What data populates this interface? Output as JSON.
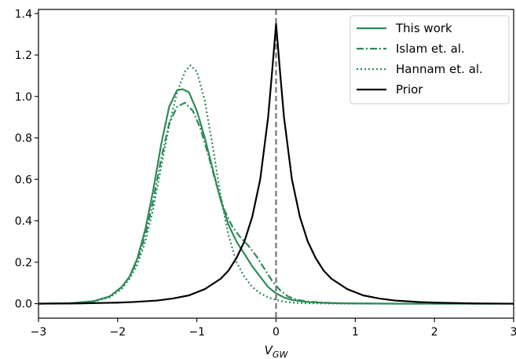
{
  "chart_data": {
    "type": "line",
    "title": "",
    "xlabel": "V",
    "xlabel_sub": "GW",
    "ylabel": "",
    "xlim": [
      -3,
      3
    ],
    "ylim": [
      -0.07,
      1.42
    ],
    "xticks": [
      -3,
      -2,
      -1,
      0,
      1,
      2,
      3
    ],
    "xtick_labels": [
      "−3",
      "−2",
      "−1",
      "0",
      "1",
      "2",
      "3"
    ],
    "yticks": [
      0.0,
      0.2,
      0.4,
      0.6,
      0.8,
      1.0,
      1.2,
      1.4
    ],
    "ytick_labels": [
      "0.0",
      "0.2",
      "0.4",
      "0.6",
      "0.8",
      "1.0",
      "1.2",
      "1.4"
    ],
    "grid": false,
    "legend_position": "top-right",
    "vline": {
      "x": 0,
      "color": "#808080",
      "style": "dashed"
    },
    "series": [
      {
        "name": "This work",
        "color": "#2e8b57",
        "style": "solid",
        "points": [
          [
            -3,
            0
          ],
          [
            -2.6,
            0.002
          ],
          [
            -2.3,
            0.012
          ],
          [
            -2.1,
            0.035
          ],
          [
            -1.95,
            0.08
          ],
          [
            -1.85,
            0.13
          ],
          [
            -1.75,
            0.22
          ],
          [
            -1.65,
            0.36
          ],
          [
            -1.55,
            0.55
          ],
          [
            -1.45,
            0.77
          ],
          [
            -1.35,
            0.95
          ],
          [
            -1.25,
            1.03
          ],
          [
            -1.18,
            1.035
          ],
          [
            -1.1,
            1.02
          ],
          [
            -1.0,
            0.93
          ],
          [
            -0.9,
            0.8
          ],
          [
            -0.8,
            0.65
          ],
          [
            -0.7,
            0.5
          ],
          [
            -0.6,
            0.38
          ],
          [
            -0.5,
            0.3
          ],
          [
            -0.4,
            0.24
          ],
          [
            -0.3,
            0.18
          ],
          [
            -0.2,
            0.13
          ],
          [
            -0.1,
            0.08
          ],
          [
            0,
            0.05
          ],
          [
            0.1,
            0.03
          ],
          [
            0.2,
            0.018
          ],
          [
            0.4,
            0.008
          ],
          [
            0.6,
            0.004
          ],
          [
            0.8,
            0.002
          ],
          [
            1.0,
            0.001
          ],
          [
            1.5,
            0
          ],
          [
            3,
            0
          ]
        ]
      },
      {
        "name": "Islam et. al.",
        "color": "#2e8b57",
        "style": "dashdot",
        "points": [
          [
            -3,
            0
          ],
          [
            -2.6,
            0.002
          ],
          [
            -2.3,
            0.012
          ],
          [
            -2.1,
            0.035
          ],
          [
            -1.95,
            0.08
          ],
          [
            -1.85,
            0.13
          ],
          [
            -1.75,
            0.21
          ],
          [
            -1.65,
            0.33
          ],
          [
            -1.55,
            0.5
          ],
          [
            -1.45,
            0.7
          ],
          [
            -1.35,
            0.87
          ],
          [
            -1.25,
            0.95
          ],
          [
            -1.15,
            0.97
          ],
          [
            -1.05,
            0.93
          ],
          [
            -0.95,
            0.84
          ],
          [
            -0.85,
            0.71
          ],
          [
            -0.75,
            0.57
          ],
          [
            -0.65,
            0.45
          ],
          [
            -0.55,
            0.37
          ],
          [
            -0.45,
            0.32
          ],
          [
            -0.35,
            0.28
          ],
          [
            -0.25,
            0.23
          ],
          [
            -0.15,
            0.17
          ],
          [
            -0.05,
            0.11
          ],
          [
            0.05,
            0.065
          ],
          [
            0.15,
            0.035
          ],
          [
            0.25,
            0.02
          ],
          [
            0.4,
            0.01
          ],
          [
            0.6,
            0.005
          ],
          [
            0.8,
            0.002
          ],
          [
            1.0,
            0.001
          ],
          [
            1.5,
            0
          ],
          [
            3,
            0
          ]
        ]
      },
      {
        "name": "Hannam et. al.",
        "color": "#2e8b57",
        "style": "dotted",
        "points": [
          [
            -3,
            0
          ],
          [
            -2.6,
            0.002
          ],
          [
            -2.3,
            0.01
          ],
          [
            -2.1,
            0.03
          ],
          [
            -1.95,
            0.07
          ],
          [
            -1.85,
            0.12
          ],
          [
            -1.75,
            0.19
          ],
          [
            -1.65,
            0.3
          ],
          [
            -1.55,
            0.46
          ],
          [
            -1.45,
            0.66
          ],
          [
            -1.35,
            0.86
          ],
          [
            -1.25,
            1.02
          ],
          [
            -1.15,
            1.12
          ],
          [
            -1.08,
            1.15
          ],
          [
            -1.0,
            1.12
          ],
          [
            -0.9,
            0.98
          ],
          [
            -0.8,
            0.76
          ],
          [
            -0.7,
            0.52
          ],
          [
            -0.6,
            0.33
          ],
          [
            -0.5,
            0.2
          ],
          [
            -0.4,
            0.13
          ],
          [
            -0.3,
            0.08
          ],
          [
            -0.2,
            0.05
          ],
          [
            -0.1,
            0.03
          ],
          [
            0,
            0.018
          ],
          [
            0.1,
            0.01
          ],
          [
            0.2,
            0.005
          ],
          [
            0.4,
            0.002
          ],
          [
            0.6,
            0.001
          ],
          [
            1.0,
            0
          ],
          [
            3,
            0
          ]
        ]
      },
      {
        "name": "Prior",
        "color": "#000000",
        "style": "solid",
        "points": [
          [
            -3,
            0
          ],
          [
            -2.5,
            0.001
          ],
          [
            -2.0,
            0.005
          ],
          [
            -1.8,
            0.008
          ],
          [
            -1.5,
            0.015
          ],
          [
            -1.3,
            0.025
          ],
          [
            -1.1,
            0.04
          ],
          [
            -0.9,
            0.07
          ],
          [
            -0.7,
            0.12
          ],
          [
            -0.6,
            0.16
          ],
          [
            -0.5,
            0.22
          ],
          [
            -0.4,
            0.3
          ],
          [
            -0.3,
            0.42
          ],
          [
            -0.2,
            0.6
          ],
          [
            -0.1,
            0.9
          ],
          [
            -0.05,
            1.12
          ],
          [
            0,
            1.35
          ],
          [
            0.05,
            1.12
          ],
          [
            0.1,
            0.9
          ],
          [
            0.2,
            0.6
          ],
          [
            0.3,
            0.42
          ],
          [
            0.4,
            0.3
          ],
          [
            0.5,
            0.22
          ],
          [
            0.6,
            0.16
          ],
          [
            0.7,
            0.12
          ],
          [
            0.9,
            0.07
          ],
          [
            1.1,
            0.04
          ],
          [
            1.3,
            0.025
          ],
          [
            1.5,
            0.015
          ],
          [
            1.8,
            0.008
          ],
          [
            2.0,
            0.005
          ],
          [
            2.5,
            0.001
          ],
          [
            3,
            0
          ]
        ]
      }
    ]
  }
}
